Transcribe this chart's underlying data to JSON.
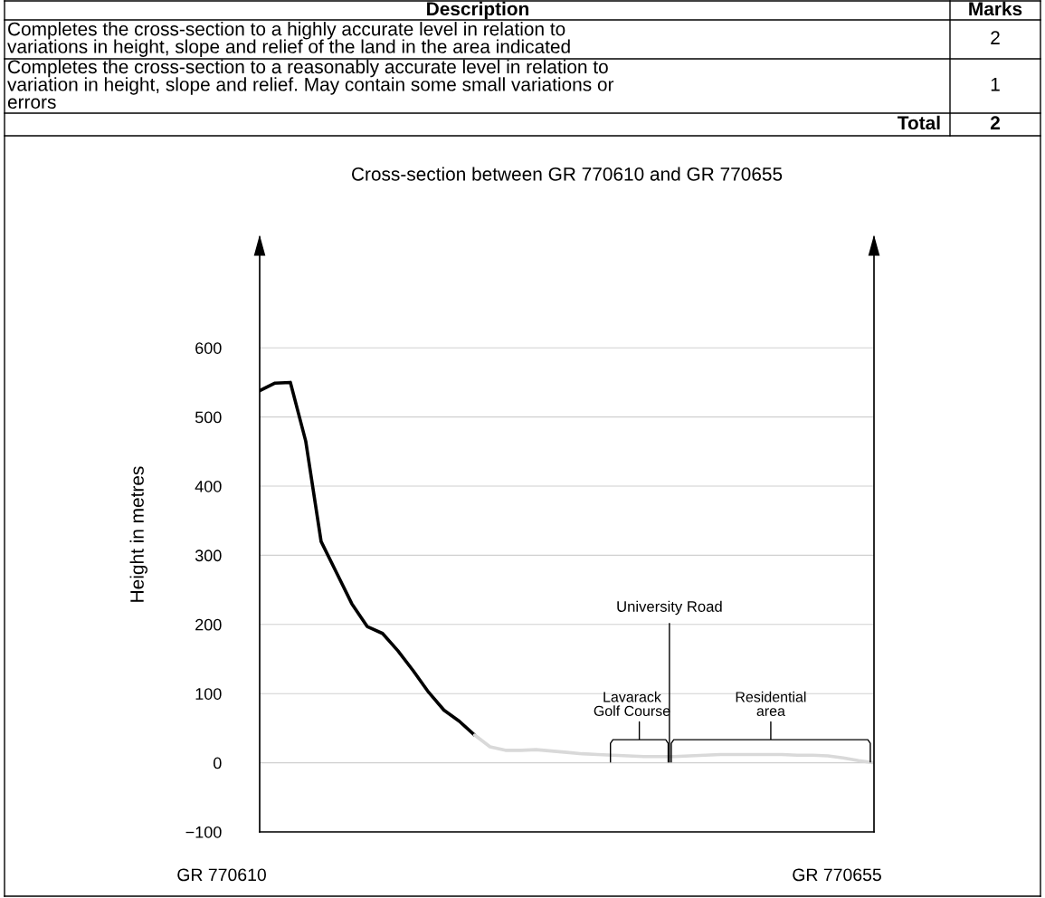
{
  "chart_data": {
    "type": "line",
    "title": "Cross-section between GR 770610 and GR 770655",
    "ylabel": "Height in metres",
    "categories": [
      null,
      null,
      null,
      null,
      null,
      null,
      null,
      null,
      null,
      null,
      null,
      null,
      null,
      null,
      null,
      null,
      null,
      null,
      null,
      null,
      null,
      null,
      null,
      null,
      null,
      null,
      null,
      null,
      null,
      null,
      null,
      null,
      null,
      null,
      null,
      null,
      null,
      null,
      null,
      null,
      null
    ],
    "series": [
      {
        "color": "#000000",
        "values": [
          538,
          549,
          550,
          465,
          320,
          275,
          230,
          197,
          187,
          162,
          133,
          102,
          76,
          60,
          40,
          null,
          null,
          null,
          null,
          null,
          null,
          null,
          null,
          null,
          null,
          null,
          null,
          null,
          null,
          null,
          null,
          null,
          null,
          null,
          null,
          null,
          null,
          null,
          null,
          null,
          null
        ]
      },
      {
        "color": "#d9d9d9",
        "values": [
          null,
          null,
          null,
          null,
          null,
          null,
          null,
          null,
          null,
          null,
          null,
          null,
          null,
          null,
          40,
          23,
          18,
          18,
          19,
          17,
          15,
          13,
          12,
          11,
          10,
          9,
          9,
          9,
          10,
          11,
          12,
          12,
          12,
          12,
          12,
          11,
          11,
          10,
          7,
          3,
          0
        ]
      }
    ],
    "ylim": [
      -100,
      760
    ],
    "yticks": [
      {
        "value": -100,
        "label": "−100"
      },
      0,
      100,
      200,
      300,
      400,
      500,
      600
    ],
    "tick_labels": "y",
    "grid": "y",
    "legend": false,
    "marker": "none",
    "line_style": "solid",
    "annotations": [
      "University Road",
      "Lavarack\nGolf Course",
      "Residential\narea",
      "GR 770610",
      "GR 770655",
      "Description",
      "Marks",
      "Completes the cross-section to a highly accurate level in relation to\nvariations in height, slope and relief of the land in the area indicated",
      "2",
      "Completes the cross-section to a reasonably accurate level in relation to\nvariation in height, slope and relief. May contain some small variations or\nerrors",
      "1",
      "Total",
      "2"
    ]
  }
}
